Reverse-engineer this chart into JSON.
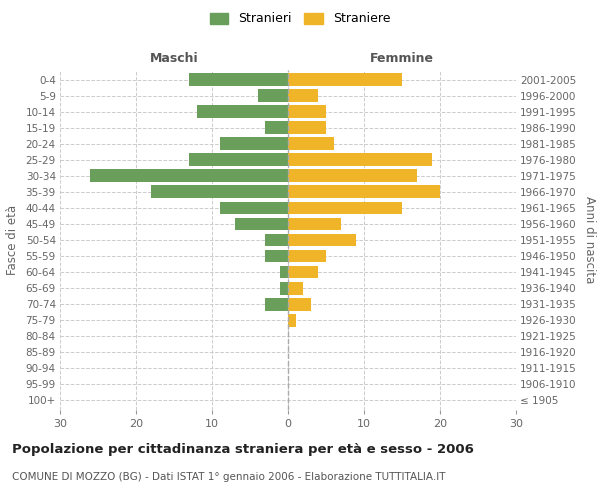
{
  "age_groups": [
    "100+",
    "95-99",
    "90-94",
    "85-89",
    "80-84",
    "75-79",
    "70-74",
    "65-69",
    "60-64",
    "55-59",
    "50-54",
    "45-49",
    "40-44",
    "35-39",
    "30-34",
    "25-29",
    "20-24",
    "15-19",
    "10-14",
    "5-9",
    "0-4"
  ],
  "birth_years": [
    "≤ 1905",
    "1906-1910",
    "1911-1915",
    "1916-1920",
    "1921-1925",
    "1926-1930",
    "1931-1935",
    "1936-1940",
    "1941-1945",
    "1946-1950",
    "1951-1955",
    "1956-1960",
    "1961-1965",
    "1966-1970",
    "1971-1975",
    "1976-1980",
    "1981-1985",
    "1986-1990",
    "1991-1995",
    "1996-2000",
    "2001-2005"
  ],
  "maschi": [
    0,
    0,
    0,
    0,
    0,
    0,
    3,
    1,
    1,
    3,
    3,
    7,
    9,
    18,
    26,
    13,
    9,
    3,
    12,
    4,
    13
  ],
  "femmine": [
    0,
    0,
    0,
    0,
    0,
    1,
    3,
    2,
    4,
    5,
    9,
    7,
    15,
    20,
    17,
    19,
    6,
    5,
    5,
    4,
    15
  ],
  "color_maschi": "#6a9e5b",
  "color_femmine": "#f0b429",
  "background_color": "#ffffff",
  "grid_color": "#cccccc",
  "title": "Popolazione per cittadinanza straniera per età e sesso - 2006",
  "subtitle": "COMUNE DI MOZZO (BG) - Dati ISTAT 1° gennaio 2006 - Elaborazione TUTTITALIA.IT",
  "xlabel_left": "Maschi",
  "xlabel_right": "Femmine",
  "ylabel_left": "Fasce di età",
  "ylabel_right": "Anni di nascita",
  "legend_maschi": "Stranieri",
  "legend_femmine": "Straniere",
  "xlim": 30,
  "bar_height": 0.8
}
